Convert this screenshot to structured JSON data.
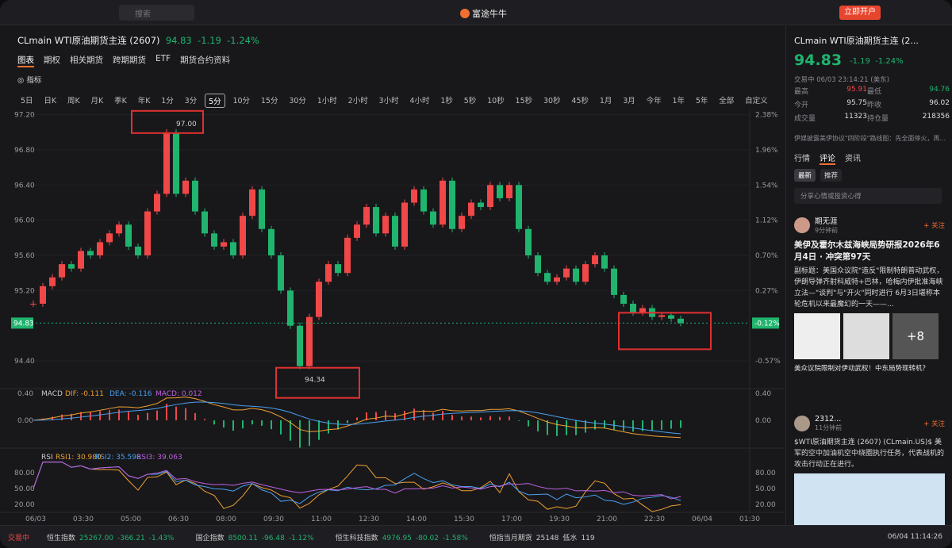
{
  "topbar": {
    "search": "搜索",
    "app": "富途牛牛",
    "open_account": "立即开户"
  },
  "header": {
    "symbol": "CLmain WTI原油期货主连 (2607)",
    "price": "94.83",
    "change": "-1.19",
    "pct": "-1.24%"
  },
  "tabs": [
    "图表",
    "期权",
    "相关期货",
    "跨期期货",
    "ETF",
    "期货合约资料"
  ],
  "toolbar": {
    "indicator": "指标"
  },
  "periods": [
    "5日",
    "日K",
    "周K",
    "月K",
    "季K",
    "年K",
    "1分",
    "3分",
    "5分",
    "10分",
    "15分",
    "30分",
    "1小时",
    "2小时",
    "3小时",
    "4小时",
    "1秒",
    "5秒",
    "10秒",
    "15秒",
    "30秒",
    "45秒",
    "1月",
    "3月",
    "今年",
    "1年",
    "5年",
    "全部",
    "自定义"
  ],
  "selected_period": "5分",
  "chart": {
    "ylim": [
      94.13,
      97.26
    ],
    "yticks": [
      {
        "value": 97.2,
        "label": "97.20",
        "pct": "2.38%"
      },
      {
        "value": 96.8,
        "label": "96.80",
        "pct": "1.96%"
      },
      {
        "value": 96.4,
        "label": "96.40",
        "pct": "1.54%"
      },
      {
        "value": 96,
        "label": "96.00",
        "pct": "1.12%"
      },
      {
        "value": 95.6,
        "label": "95.60",
        "pct": "0.70%"
      },
      {
        "value": 95.2,
        "label": "95.20",
        "pct": "0.27%"
      },
      {
        "value": 94.4,
        "label": "94.40",
        "pct": "-0.57%"
      }
    ],
    "current": {
      "value": 94.83,
      "label": "94.83",
      "pct": "-0.12%"
    },
    "high_label": "97.00",
    "low_label": "94.34",
    "closes": [
      95.05,
      95.25,
      95.35,
      95.5,
      95.45,
      95.65,
      95.6,
      95.75,
      95.85,
      95.95,
      95.7,
      95.6,
      96.1,
      96.3,
      97.0,
      96.3,
      96.45,
      96.1,
      95.85,
      95.7,
      95.75,
      95.6,
      96.05,
      96.35,
      95.9,
      95.6,
      95.2,
      94.8,
      94.34,
      94.9,
      95.3,
      95.5,
      95.4,
      95.8,
      95.95,
      96.15,
      95.85,
      96.05,
      95.7,
      96.2,
      96.35,
      96.1,
      95.95,
      96.45,
      95.9,
      96.05,
      96.2,
      96.15,
      96.4,
      96.25,
      96.4,
      95.9,
      95.6,
      95.4,
      95.3,
      95.35,
      95.45,
      95.3,
      95.5,
      95.6,
      95.45,
      95.15,
      95.05,
      94.95,
      95.0,
      94.9,
      94.92,
      94.88,
      94.83
    ],
    "xticks": [
      "06/03",
      "03:30",
      "05:00",
      "06:30",
      "08:00",
      "09:30",
      "11:00",
      "12:30",
      "14:00",
      "15:30",
      "17:00",
      "19:30",
      "21:00",
      "22:30",
      "06/04",
      "01:30"
    ],
    "macd": {
      "name": "MACD",
      "dif": "DIF: -0.111",
      "dea": "DEA: -0.116",
      "macd": "MACD: 0.012",
      "ticks": [
        "0.40",
        "0.00"
      ]
    },
    "rsi": {
      "name": "RSI",
      "rsi1": "RSI1: 30.980",
      "rsi2": "RSI2: 35.598",
      "rsi3": "RSI3: 39.063",
      "ticks": [
        "80.00",
        "50.00",
        "20.00"
      ]
    }
  },
  "side": {
    "title": "CLmain  WTI原油期货主连 (2...",
    "price": "94.83",
    "change": "-1.19",
    "pct": "-1.24%",
    "status": "交易中 06/03 23:14:21 (美东)",
    "stats": [
      [
        "最高",
        "95.91",
        "最低",
        "94.76"
      ],
      [
        "今开",
        "95.75",
        "昨收",
        "96.02"
      ],
      [
        "成交量",
        "11323",
        "持仓量",
        "218356"
      ]
    ],
    "news": "伊媒披露美伊协议\"四阶段\"路线图：先全面停火，再...",
    "tabs": [
      "行情",
      "评论",
      "资讯"
    ],
    "subtabs": [
      "最新",
      "推荐"
    ],
    "input": "分享心情或投资心得",
    "posts": [
      {
        "user": "期无涯",
        "time": "9分钟前",
        "follow": "+ 关注",
        "title": "美伊及霍尔木兹海峡局势研报2026年6月4日 · 冲突第97天",
        "body": "副标题：美国众议院\"造反\"限制特朗普动武权，伊朗导弹齐射科威特+巴林，哈梅内伊批准海峡立法—\"谈判\"与\"开火\"同时进行 6月3日堪称本轮危机以来最魔幻的一天——...",
        "more": "+8",
        "tag": "美众议院限制对伊动武权！中东局势现转机？"
      },
      {
        "user": "2312...",
        "time": "11分钟前",
        "follow": "+ 关注",
        "body": "$WTI原油期货主连 (2607) (CLmain.US)$ 美军的空中加油机空中绕圈执行任务，代表战机的攻击行动正在进行。"
      }
    ]
  },
  "bottom": {
    "status": "交易中",
    "indices": [
      [
        "恒生指数",
        "25267.00",
        "-366.21",
        "-1.43%"
      ],
      [
        "国企指数",
        "8500.11",
        "-96.48",
        "-1.12%"
      ],
      [
        "恒生科技指数",
        "4976.95",
        "-80.02",
        "-1.58%"
      ]
    ],
    "future": [
      "恒指当月期货",
      "25148",
      "低水",
      "119"
    ],
    "time": "06/04 11:14:26"
  }
}
